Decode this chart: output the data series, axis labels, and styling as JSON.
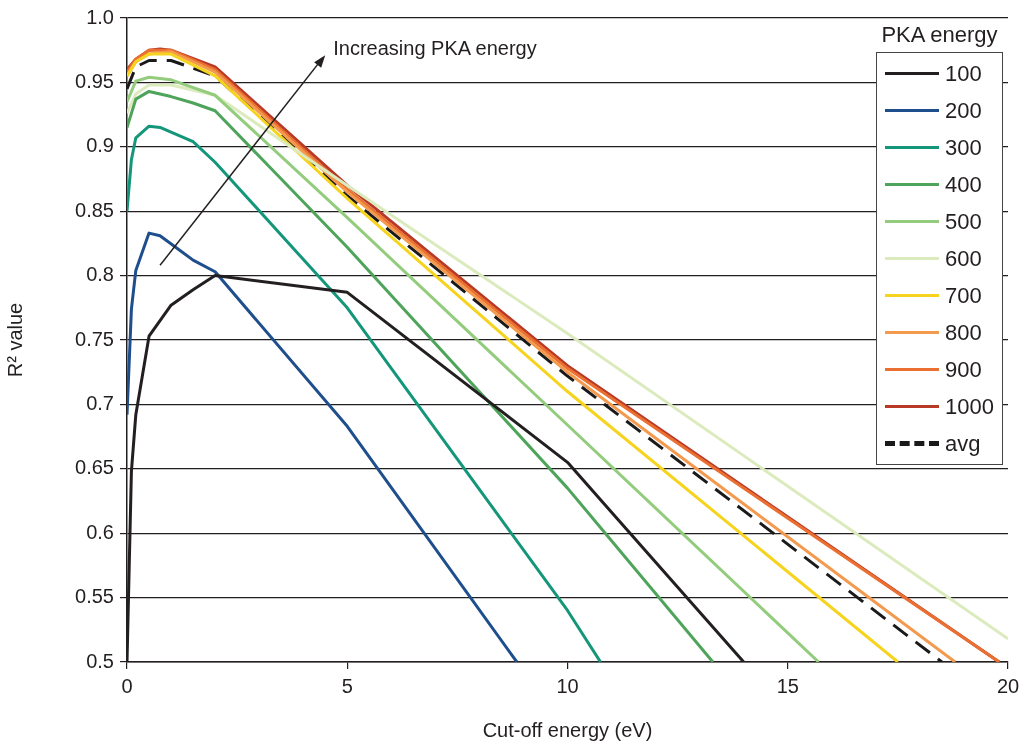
{
  "chart_data": {
    "type": "line",
    "xlabel": "Cut-off energy (eV)",
    "ylabel": "R² value",
    "legend_title": "PKA energy",
    "legend": "top right",
    "grid": "y",
    "marker": "none",
    "xlim": [
      0,
      20
    ],
    "xticks": [
      0,
      5,
      10,
      15,
      20
    ],
    "ylim": [
      0.5,
      1.0
    ],
    "yticks": [
      0.5,
      0.55,
      0.6,
      0.65,
      0.7,
      0.75,
      0.8,
      0.85,
      0.9,
      0.95,
      {
        "value": 1.0,
        "label": "1.0"
      }
    ],
    "annotations": [
      "Increasing PKA energy"
    ],
    "series": [
      {
        "name": "100",
        "color": "#231f20",
        "x": [
          0,
          0.1,
          0.2,
          0.5,
          1,
          1.5,
          2,
          5,
          10,
          14
        ],
        "values": [
          0.5,
          0.648,
          0.692,
          0.753,
          0.777,
          0.789,
          0.8,
          0.787,
          0.655,
          0.5
        ]
      },
      {
        "name": "200",
        "color": "#1f4e8c",
        "x": [
          0,
          0.1,
          0.2,
          0.5,
          0.75,
          1.5,
          2,
          5,
          8.85
        ],
        "values": [
          0.692,
          0.774,
          0.804,
          0.833,
          0.831,
          0.812,
          0.803,
          0.683,
          0.5
        ]
      },
      {
        "name": "300",
        "color": "#14967a",
        "x": [
          0,
          0.1,
          0.2,
          0.5,
          0.75,
          1.5,
          2,
          5,
          10,
          10.75
        ],
        "values": [
          0.85,
          0.89,
          0.907,
          0.916,
          0.915,
          0.904,
          0.888,
          0.775,
          0.54,
          0.5
        ]
      },
      {
        "name": "400",
        "color": "#4ea45a",
        "x": [
          0,
          0.2,
          0.5,
          1,
          1.5,
          2,
          5,
          10,
          13.3
        ],
        "values": [
          0.915,
          0.937,
          0.943,
          0.939,
          0.934,
          0.928,
          0.822,
          0.635,
          0.5
        ]
      },
      {
        "name": "500",
        "color": "#93cc7c",
        "x": [
          0,
          0.2,
          0.5,
          1,
          2,
          5,
          10,
          15.7
        ],
        "values": [
          0.935,
          0.951,
          0.954,
          0.952,
          0.94,
          0.845,
          0.684,
          0.5
        ]
      },
      {
        "name": "600",
        "color": "#dcebbd",
        "x": [
          0,
          0.2,
          0.5,
          1,
          2,
          5,
          10,
          20
        ],
        "values": [
          0.926,
          0.941,
          0.948,
          0.948,
          0.94,
          0.87,
          0.755,
          0.518
        ]
      },
      {
        "name": "700",
        "color": "#f6d31c",
        "x": [
          0,
          0.2,
          0.5,
          1,
          2,
          5,
          10,
          17.5
        ],
        "values": [
          0.955,
          0.966,
          0.972,
          0.972,
          0.955,
          0.86,
          0.71,
          0.5
        ]
      },
      {
        "name": "800",
        "color": "#f39a4e",
        "x": [
          0,
          0.2,
          0.5,
          1,
          2,
          5,
          10,
          18.8
        ],
        "values": [
          0.955,
          0.966,
          0.972,
          0.974,
          0.958,
          0.865,
          0.725,
          0.5
        ]
      },
      {
        "name": "900",
        "color": "#ea6f30",
        "x": [
          0,
          0.2,
          0.5,
          1,
          2,
          5,
          10,
          19.8
        ],
        "values": [
          0.958,
          0.968,
          0.975,
          0.975,
          0.96,
          0.867,
          0.728,
          0.5
        ]
      },
      {
        "name": "1000",
        "color": "#b83a26",
        "x": [
          0,
          0.2,
          0.5,
          0.75,
          1,
          2,
          5,
          10,
          19.8
        ],
        "values": [
          0.96,
          0.968,
          0.975,
          0.976,
          0.975,
          0.962,
          0.87,
          0.73,
          0.5
        ]
      },
      {
        "name": "avg",
        "color": "#1a1a1a",
        "line_style": "dashed",
        "x": [
          0,
          0.2,
          0.5,
          1,
          2,
          5,
          10,
          18.5
        ],
        "values": [
          0.945,
          0.962,
          0.967,
          0.967,
          0.955,
          0.862,
          0.722,
          0.5
        ]
      }
    ]
  }
}
